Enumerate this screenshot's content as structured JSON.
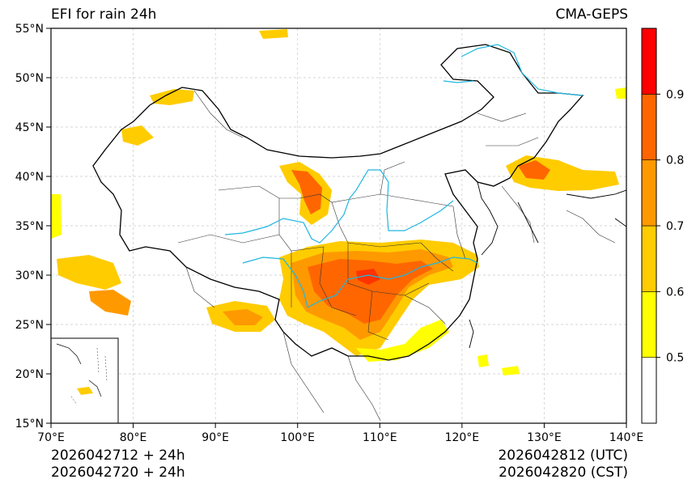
{
  "title_left": "EFI for rain 24h",
  "title_right": "CMA-GEPS",
  "footer": {
    "left_line1": "2026042712 + 24h",
    "left_line2": "2026042720 + 24h",
    "right_line1": "2026042812 (UTC)",
    "right_line2": "2026042820 (CST)"
  },
  "map": {
    "lon_range": [
      70,
      140
    ],
    "lat_range": [
      15,
      55
    ],
    "lon_ticks": [
      "70°E",
      "80°E",
      "90°E",
      "100°E",
      "110°E",
      "120°E",
      "130°E",
      "140°E"
    ],
    "lat_ticks": [
      "15°N",
      "20°N",
      "25°N",
      "30°N",
      "35°N",
      "40°N",
      "45°N",
      "50°N",
      "55°N"
    ],
    "gridlines": true
  },
  "colorbar": {
    "levels": [
      0.4,
      0.5,
      0.6,
      0.7,
      0.8,
      0.9,
      1.0
    ],
    "colors": [
      "#ffffff",
      "#ffff00",
      "#ffcc00",
      "#ff9900",
      "#ff6600",
      "#ff0000"
    ],
    "labels": [
      "0.5",
      "0.6",
      "0.7",
      "0.8",
      "0.9"
    ]
  },
  "colors": {
    "border": "#000000",
    "province": "#333333",
    "river": "#1fb6e0",
    "grid": "#c8c8c8"
  }
}
